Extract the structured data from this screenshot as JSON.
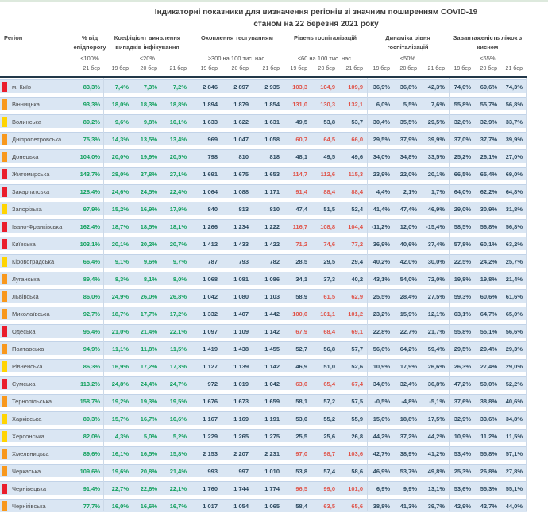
{
  "title": {
    "line1": "Індикаторні показники для визначення регіонів зі значним поширенням COVID-19",
    "line2": "станом на 22 березня 2021 року"
  },
  "header": {
    "region_label": "Регіон",
    "groups": [
      {
        "label": "% від епідпорогу",
        "threshold": "≤100%",
        "dates": [
          "21 бер"
        ]
      },
      {
        "label": "Коефіцієнт виявлення випадків інфікування",
        "threshold": "≤20%",
        "dates": [
          "19 бер",
          "20 бер",
          "21 бер"
        ]
      },
      {
        "label": "Охоплення тестуванням",
        "threshold": "≥300 на 100 тис. нас.",
        "dates": [
          "19 бер",
          "20 бер",
          "21 бер"
        ]
      },
      {
        "label": "Рівень госпіталізацій",
        "threshold": "≤60 на 100 тис. нас.",
        "dates": [
          "19 бер",
          "20 бер",
          "21 бер"
        ]
      },
      {
        "label": "Динаміка рівня госпіталізацій",
        "threshold": "≤50%",
        "dates": [
          "19 бер",
          "20 бер",
          "21 бер"
        ]
      },
      {
        "label": "Завантаженість ліжок з киснем",
        "threshold": "≤65%",
        "dates": [
          "19 бер",
          "20 бер",
          "21 бер"
        ]
      }
    ]
  },
  "colors": {
    "green_value": "#12a05e",
    "red_value": "#df544a",
    "dark_value": "#2d4a5f",
    "row_band": "#dae6f3",
    "row_band_border": "#c2d3e8",
    "separator": "#ccd9e8",
    "header_rule": "#22384a",
    "indicator_red": "#ea1e2c",
    "indicator_orange": "#f8981d",
    "indicator_yellow": "#ffd403"
  },
  "rows": [
    {
      "region": "м. Київ",
      "alert_level": "red",
      "pct": "83,3%",
      "coef": [
        "7,4%",
        "7,3%",
        "7,2%"
      ],
      "test": [
        "2 846",
        "2 897",
        "2 935"
      ],
      "hosp": [
        "103,3",
        "104,9",
        "109,9"
      ],
      "hosp_alert": [
        true,
        true,
        true
      ],
      "dyn": [
        "36,9%",
        "36,8%",
        "42,3%"
      ],
      "oxygen": [
        "74,0%",
        "69,6%",
        "74,3%"
      ]
    },
    {
      "region": "Вінницька",
      "alert_level": "orange",
      "pct": "93,3%",
      "coef": [
        "18,0%",
        "18,3%",
        "18,8%"
      ],
      "test": [
        "1 894",
        "1 879",
        "1 854"
      ],
      "hosp": [
        "131,0",
        "130,3",
        "132,1"
      ],
      "hosp_alert": [
        true,
        true,
        true
      ],
      "dyn": [
        "6,0%",
        "5,5%",
        "7,6%"
      ],
      "oxygen": [
        "55,8%",
        "55,7%",
        "56,8%"
      ]
    },
    {
      "region": "Волинська",
      "alert_level": "yellow",
      "pct": "89,2%",
      "coef": [
        "9,6%",
        "9,8%",
        "10,1%"
      ],
      "test": [
        "1 633",
        "1 622",
        "1 631"
      ],
      "hosp": [
        "49,5",
        "53,8",
        "53,7"
      ],
      "hosp_alert": [
        false,
        false,
        false
      ],
      "dyn": [
        "30,4%",
        "35,5%",
        "29,5%"
      ],
      "oxygen": [
        "32,6%",
        "32,9%",
        "33,7%"
      ]
    },
    {
      "region": "Дніпропетровська",
      "alert_level": "orange",
      "pct": "75,3%",
      "coef": [
        "14,3%",
        "13,5%",
        "13,4%"
      ],
      "test": [
        "969",
        "1 047",
        "1 058"
      ],
      "hosp": [
        "60,7",
        "64,5",
        "66,0"
      ],
      "hosp_alert": [
        true,
        true,
        true
      ],
      "dyn": [
        "29,5%",
        "37,9%",
        "39,9%"
      ],
      "oxygen": [
        "37,0%",
        "37,7%",
        "39,9%"
      ]
    },
    {
      "region": "Донецька",
      "alert_level": "orange",
      "pct": "104,0%",
      "coef": [
        "20,0%",
        "19,9%",
        "20,5%"
      ],
      "test": [
        "798",
        "810",
        "818"
      ],
      "hosp": [
        "48,1",
        "49,5",
        "49,6"
      ],
      "hosp_alert": [
        false,
        false,
        false
      ],
      "dyn": [
        "34,0%",
        "34,8%",
        "33,5%"
      ],
      "oxygen": [
        "25,2%",
        "26,1%",
        "27,0%"
      ]
    },
    {
      "region": "Житомирська",
      "alert_level": "red",
      "pct": "143,7%",
      "coef": [
        "28,0%",
        "27,8%",
        "27,1%"
      ],
      "test": [
        "1 691",
        "1 675",
        "1 653"
      ],
      "hosp": [
        "114,7",
        "112,6",
        "115,3"
      ],
      "hosp_alert": [
        true,
        true,
        true
      ],
      "dyn": [
        "23,9%",
        "22,0%",
        "20,1%"
      ],
      "oxygen": [
        "66,5%",
        "65,4%",
        "69,0%"
      ]
    },
    {
      "region": "Закарпатська",
      "alert_level": "red",
      "pct": "128,4%",
      "coef": [
        "24,6%",
        "24,5%",
        "22,4%"
      ],
      "test": [
        "1 064",
        "1 088",
        "1 171"
      ],
      "hosp": [
        "91,4",
        "88,4",
        "88,4"
      ],
      "hosp_alert": [
        true,
        true,
        true
      ],
      "dyn": [
        "4,4%",
        "2,1%",
        "1,7%"
      ],
      "oxygen": [
        "64,0%",
        "62,2%",
        "64,8%"
      ]
    },
    {
      "region": "Запорізька",
      "alert_level": "yellow",
      "pct": "97,9%",
      "coef": [
        "15,2%",
        "16,9%",
        "17,9%"
      ],
      "test": [
        "840",
        "813",
        "810"
      ],
      "hosp": [
        "47,4",
        "51,5",
        "52,4"
      ],
      "hosp_alert": [
        false,
        false,
        false
      ],
      "dyn": [
        "41,4%",
        "47,4%",
        "46,9%"
      ],
      "oxygen": [
        "29,0%",
        "30,9%",
        "31,8%"
      ]
    },
    {
      "region": "Івано-Франківська",
      "alert_level": "red",
      "pct": "162,4%",
      "coef": [
        "18,7%",
        "18,5%",
        "18,1%"
      ],
      "test": [
        "1 266",
        "1 234",
        "1 222"
      ],
      "hosp": [
        "116,7",
        "108,8",
        "104,4"
      ],
      "hosp_alert": [
        true,
        true,
        true
      ],
      "dyn": [
        "-11,2%",
        "12,0%",
        "-15,4%"
      ],
      "oxygen": [
        "58,5%",
        "56,8%",
        "56,8%"
      ]
    },
    {
      "region": "Київська",
      "alert_level": "red",
      "pct": "103,1%",
      "coef": [
        "20,1%",
        "20,2%",
        "20,7%"
      ],
      "test": [
        "1 412",
        "1 433",
        "1 422"
      ],
      "hosp": [
        "71,2",
        "74,6",
        "77,2"
      ],
      "hosp_alert": [
        true,
        true,
        true
      ],
      "dyn": [
        "36,9%",
        "40,6%",
        "37,4%"
      ],
      "oxygen": [
        "57,8%",
        "60,1%",
        "63,2%"
      ]
    },
    {
      "region": "Кіровоградська",
      "alert_level": "yellow",
      "pct": "66,4%",
      "coef": [
        "9,1%",
        "9,6%",
        "9,7%"
      ],
      "test": [
        "787",
        "793",
        "782"
      ],
      "hosp": [
        "28,5",
        "29,5",
        "29,4"
      ],
      "hosp_alert": [
        false,
        false,
        false
      ],
      "dyn": [
        "40,2%",
        "42,0%",
        "30,0%"
      ],
      "oxygen": [
        "22,5%",
        "24,2%",
        "25,7%"
      ]
    },
    {
      "region": "Луганська",
      "alert_level": "orange",
      "pct": "89,4%",
      "coef": [
        "8,3%",
        "8,1%",
        "8,0%"
      ],
      "test": [
        "1 068",
        "1 081",
        "1 086"
      ],
      "hosp": [
        "34,1",
        "37,3",
        "40,2"
      ],
      "hosp_alert": [
        false,
        false,
        false
      ],
      "dyn": [
        "43,1%",
        "54,0%",
        "72,0%"
      ],
      "oxygen": [
        "19,8%",
        "19,8%",
        "21,4%"
      ]
    },
    {
      "region": "Львівська",
      "alert_level": "orange",
      "pct": "86,0%",
      "coef": [
        "24,9%",
        "26,0%",
        "26,8%"
      ],
      "test": [
        "1 042",
        "1 080",
        "1 103"
      ],
      "hosp": [
        "58,9",
        "61,5",
        "62,9"
      ],
      "hosp_alert": [
        false,
        true,
        true
      ],
      "dyn": [
        "25,5%",
        "28,4%",
        "27,5%"
      ],
      "oxygen": [
        "59,3%",
        "60,6%",
        "61,6%"
      ]
    },
    {
      "region": "Миколаївська",
      "alert_level": "orange",
      "pct": "92,7%",
      "coef": [
        "18,7%",
        "17,7%",
        "17,2%"
      ],
      "test": [
        "1 332",
        "1 407",
        "1 442"
      ],
      "hosp": [
        "100,0",
        "101,1",
        "101,2"
      ],
      "hosp_alert": [
        true,
        true,
        true
      ],
      "dyn": [
        "23,2%",
        "15,9%",
        "12,1%"
      ],
      "oxygen": [
        "63,1%",
        "64,7%",
        "65,0%"
      ]
    },
    {
      "region": "Одеська",
      "alert_level": "red",
      "pct": "95,4%",
      "coef": [
        "21,0%",
        "21,4%",
        "22,1%"
      ],
      "test": [
        "1 097",
        "1 109",
        "1 142"
      ],
      "hosp": [
        "67,9",
        "68,4",
        "69,1"
      ],
      "hosp_alert": [
        true,
        true,
        true
      ],
      "dyn": [
        "22,8%",
        "22,7%",
        "21,7%"
      ],
      "oxygen": [
        "55,8%",
        "55,1%",
        "56,6%"
      ]
    },
    {
      "region": "Полтавська",
      "alert_level": "orange",
      "pct": "94,9%",
      "coef": [
        "11,1%",
        "11,8%",
        "11,5%"
      ],
      "test": [
        "1 419",
        "1 438",
        "1 455"
      ],
      "hosp": [
        "52,7",
        "56,8",
        "57,7"
      ],
      "hosp_alert": [
        false,
        false,
        false
      ],
      "dyn": [
        "56,6%",
        "64,2%",
        "59,4%"
      ],
      "oxygen": [
        "29,5%",
        "29,4%",
        "29,3%"
      ]
    },
    {
      "region": "Рівненська",
      "alert_level": "yellow",
      "pct": "86,3%",
      "coef": [
        "16,9%",
        "17,2%",
        "17,3%"
      ],
      "test": [
        "1 127",
        "1 139",
        "1 142"
      ],
      "hosp": [
        "46,9",
        "51,0",
        "52,6"
      ],
      "hosp_alert": [
        false,
        false,
        false
      ],
      "dyn": [
        "10,9%",
        "17,9%",
        "26,6%"
      ],
      "oxygen": [
        "26,3%",
        "27,4%",
        "29,0%"
      ]
    },
    {
      "region": "Сумська",
      "alert_level": "red",
      "pct": "113,2%",
      "coef": [
        "24,8%",
        "24,4%",
        "24,7%"
      ],
      "test": [
        "972",
        "1 019",
        "1 042"
      ],
      "hosp": [
        "63,0",
        "65,4",
        "67,4"
      ],
      "hosp_alert": [
        true,
        true,
        true
      ],
      "dyn": [
        "34,8%",
        "32,4%",
        "36,8%"
      ],
      "oxygen": [
        "47,2%",
        "50,0%",
        "52,2%"
      ]
    },
    {
      "region": "Тернопільська",
      "alert_level": "orange",
      "pct": "158,7%",
      "coef": [
        "19,2%",
        "19,3%",
        "19,5%"
      ],
      "test": [
        "1 676",
        "1 673",
        "1 659"
      ],
      "hosp": [
        "58,1",
        "57,2",
        "57,5"
      ],
      "hosp_alert": [
        false,
        false,
        false
      ],
      "dyn": [
        "-0,5%",
        "-4,8%",
        "-5,1%"
      ],
      "oxygen": [
        "37,6%",
        "38,8%",
        "40,6%"
      ]
    },
    {
      "region": "Харківська",
      "alert_level": "yellow",
      "pct": "80,3%",
      "coef": [
        "15,7%",
        "16,7%",
        "16,6%"
      ],
      "test": [
        "1 167",
        "1 169",
        "1 191"
      ],
      "hosp": [
        "53,0",
        "55,2",
        "55,9"
      ],
      "hosp_alert": [
        false,
        false,
        false
      ],
      "dyn": [
        "15,0%",
        "18,8%",
        "17,5%"
      ],
      "oxygen": [
        "32,9%",
        "33,6%",
        "34,8%"
      ]
    },
    {
      "region": "Херсонська",
      "alert_level": "yellow",
      "pct": "82,0%",
      "coef": [
        "4,3%",
        "5,0%",
        "5,2%"
      ],
      "test": [
        "1 229",
        "1 265",
        "1 275"
      ],
      "hosp": [
        "25,5",
        "25,6",
        "26,8"
      ],
      "hosp_alert": [
        false,
        false,
        false
      ],
      "dyn": [
        "44,2%",
        "37,2%",
        "44,2%"
      ],
      "oxygen": [
        "10,9%",
        "11,2%",
        "11,5%"
      ]
    },
    {
      "region": "Хмельницька",
      "alert_level": "orange",
      "pct": "89,6%",
      "coef": [
        "16,1%",
        "16,5%",
        "15,8%"
      ],
      "test": [
        "2 153",
        "2 207",
        "2 231"
      ],
      "hosp": [
        "97,0",
        "98,7",
        "103,6"
      ],
      "hosp_alert": [
        true,
        true,
        true
      ],
      "dyn": [
        "42,7%",
        "38,9%",
        "41,2%"
      ],
      "oxygen": [
        "53,4%",
        "55,8%",
        "57,1%"
      ]
    },
    {
      "region": "Черкаська",
      "alert_level": "orange",
      "pct": "109,6%",
      "coef": [
        "19,6%",
        "20,8%",
        "21,4%"
      ],
      "test": [
        "993",
        "997",
        "1 010"
      ],
      "hosp": [
        "53,8",
        "57,4",
        "58,6"
      ],
      "hosp_alert": [
        false,
        false,
        false
      ],
      "dyn": [
        "46,9%",
        "53,7%",
        "49,8%"
      ],
      "oxygen": [
        "25,3%",
        "26,8%",
        "27,8%"
      ]
    },
    {
      "region": "Чернівецька",
      "alert_level": "red",
      "pct": "91,4%",
      "coef": [
        "22,7%",
        "22,6%",
        "22,1%"
      ],
      "test": [
        "1 760",
        "1 744",
        "1 774"
      ],
      "hosp": [
        "96,5",
        "99,0",
        "101,0"
      ],
      "hosp_alert": [
        true,
        true,
        true
      ],
      "dyn": [
        "6,9%",
        "9,9%",
        "13,1%"
      ],
      "oxygen": [
        "53,6%",
        "55,3%",
        "55,1%"
      ]
    },
    {
      "region": "Чернігівська",
      "alert_level": "orange",
      "pct": "77,7%",
      "coef": [
        "16,0%",
        "16,6%",
        "16,7%"
      ],
      "test": [
        "1 017",
        "1 054",
        "1 065"
      ],
      "hosp": [
        "58,4",
        "63,5",
        "65,6"
      ],
      "hosp_alert": [
        false,
        true,
        true
      ],
      "dyn": [
        "38,8%",
        "41,3%",
        "39,7%"
      ],
      "oxygen": [
        "42,9%",
        "42,7%",
        "44,0%"
      ]
    }
  ]
}
